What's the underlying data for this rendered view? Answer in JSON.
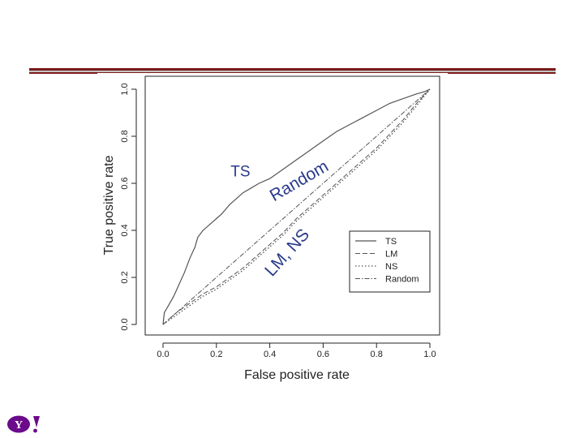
{
  "colors": {
    "rule": "#7a1a1a",
    "annotation": "#2a3a8c",
    "series": "#555555",
    "logo": "#6b0a8a"
  },
  "logo": {
    "name": "yahoo-logo",
    "text": "Y!"
  },
  "chart_data": {
    "type": "line",
    "xlabel": "False positive rate",
    "ylabel": "True positive rate",
    "xlim": [
      0,
      1
    ],
    "ylim": [
      0,
      1
    ],
    "xticks": [
      "0.0",
      "0.2",
      "0.4",
      "0.6",
      "0.8",
      "1.0"
    ],
    "yticks": [
      "0.0",
      "0.2",
      "0.4",
      "0.6",
      "0.8",
      "1.0"
    ],
    "grid": false,
    "legend_position": "bottom-right",
    "annotations": [
      {
        "text": "TS",
        "x": 0.29,
        "y": 0.63
      },
      {
        "text": "Random",
        "x": 0.52,
        "y": 0.59
      },
      {
        "text": "LM, NS",
        "x": 0.48,
        "y": 0.29
      }
    ],
    "series": [
      {
        "name": "TS",
        "dash": "solid",
        "x": [
          0,
          0.005,
          0.02,
          0.04,
          0.06,
          0.08,
          0.1,
          0.12,
          0.13,
          0.15,
          0.18,
          0.2,
          0.22,
          0.25,
          0.28,
          0.3,
          0.33,
          0.36,
          0.4,
          0.45,
          0.5,
          0.55,
          0.6,
          0.65,
          0.7,
          0.75,
          0.8,
          0.85,
          0.9,
          0.95,
          0.98,
          1.0
        ],
        "y": [
          0,
          0.05,
          0.08,
          0.12,
          0.17,
          0.22,
          0.28,
          0.33,
          0.37,
          0.4,
          0.43,
          0.45,
          0.47,
          0.51,
          0.54,
          0.56,
          0.58,
          0.6,
          0.62,
          0.66,
          0.7,
          0.74,
          0.78,
          0.82,
          0.85,
          0.88,
          0.91,
          0.94,
          0.96,
          0.98,
          0.99,
          1.0
        ]
      },
      {
        "name": "LM",
        "dash": "dashed",
        "x": [
          0,
          0.05,
          0.1,
          0.15,
          0.2,
          0.25,
          0.3,
          0.35,
          0.4,
          0.45,
          0.5,
          0.55,
          0.6,
          0.65,
          0.7,
          0.75,
          0.8,
          0.85,
          0.9,
          0.95,
          1.0
        ],
        "y": [
          0,
          0.05,
          0.09,
          0.13,
          0.16,
          0.2,
          0.24,
          0.29,
          0.34,
          0.39,
          0.45,
          0.5,
          0.55,
          0.6,
          0.65,
          0.7,
          0.75,
          0.81,
          0.87,
          0.94,
          1.0
        ]
      },
      {
        "name": "NS",
        "dash": "dotted",
        "x": [
          0,
          0.05,
          0.1,
          0.15,
          0.2,
          0.25,
          0.3,
          0.35,
          0.4,
          0.45,
          0.5,
          0.55,
          0.6,
          0.65,
          0.7,
          0.75,
          0.8,
          0.85,
          0.9,
          0.95,
          1.0
        ],
        "y": [
          0,
          0.04,
          0.08,
          0.12,
          0.15,
          0.19,
          0.23,
          0.28,
          0.33,
          0.38,
          0.44,
          0.49,
          0.54,
          0.59,
          0.64,
          0.69,
          0.74,
          0.8,
          0.86,
          0.93,
          1.0
        ]
      },
      {
        "name": "Random",
        "dash": "dotdash",
        "x": [
          0,
          1
        ],
        "y": [
          0,
          1
        ]
      }
    ]
  }
}
